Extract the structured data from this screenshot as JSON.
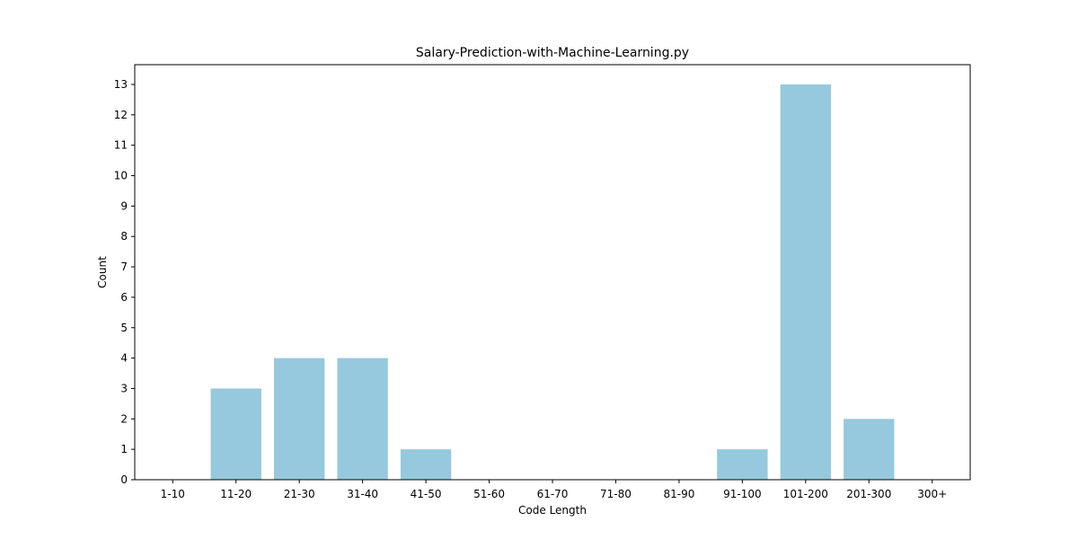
{
  "chart_data": {
    "type": "bar",
    "title": "Salary-Prediction-with-Machine-Learning.py",
    "xlabel": "Code Length",
    "ylabel": "Count",
    "categories": [
      "1-10",
      "11-20",
      "21-30",
      "31-40",
      "41-50",
      "51-60",
      "61-70",
      "71-80",
      "81-90",
      "91-100",
      "101-200",
      "201-300",
      "300+"
    ],
    "values": [
      0,
      3,
      4,
      4,
      1,
      0,
      0,
      0,
      0,
      1,
      13,
      2,
      0
    ],
    "yticks": [
      "0",
      "1",
      "2",
      "3",
      "4",
      "5",
      "6",
      "7",
      "8",
      "9",
      "10",
      "11",
      "12",
      "13"
    ],
    "ylim": [
      0,
      13.65
    ],
    "grid": false,
    "bar_color": "#96c9dd"
  }
}
